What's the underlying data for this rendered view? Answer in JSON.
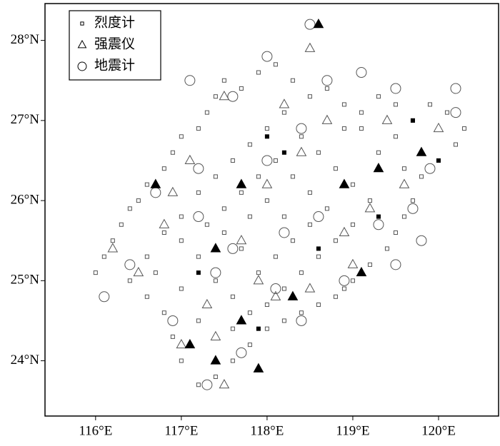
{
  "chart_data": {
    "type": "scatter",
    "xlim": [
      115.41,
      120.7
    ],
    "ylim": [
      23.31,
      28.46
    ],
    "xticks": [
      {
        "value": 116,
        "label": "116°E"
      },
      {
        "value": 117,
        "label": "117°E"
      },
      {
        "value": 118,
        "label": "118°E"
      },
      {
        "value": 119,
        "label": "119°E"
      },
      {
        "value": 120,
        "label": "120°E"
      }
    ],
    "yticks": [
      {
        "value": 24,
        "label": "24°N"
      },
      {
        "value": 25,
        "label": "25°N"
      },
      {
        "value": 26,
        "label": "26°N"
      },
      {
        "value": 27,
        "label": "27°N"
      },
      {
        "value": 28,
        "label": "28°N"
      }
    ],
    "legend": "upper left",
    "series": [
      {
        "name": "烈度计",
        "marker": "square",
        "color": "#555555",
        "fill": "none",
        "x": [
          116.0,
          116.1,
          116.2,
          116.3,
          116.4,
          116.5,
          116.6,
          116.8,
          116.9,
          117.0,
          117.2,
          117.3,
          117.4,
          117.5,
          117.7,
          117.9,
          118.1,
          118.3,
          118.5,
          118.7,
          118.9,
          119.1,
          119.3,
          119.5,
          119.7,
          119.9,
          120.1,
          120.3,
          120.2,
          120.0,
          119.8,
          119.7,
          119.6,
          119.5,
          119.4,
          119.2,
          119.0,
          118.8,
          118.6,
          118.4,
          118.2,
          118.0,
          117.8,
          117.6,
          117.4,
          117.2,
          117.0,
          116.9,
          116.8,
          116.6,
          116.4,
          116.6,
          116.8,
          117.0,
          117.2,
          117.4,
          117.6,
          117.8,
          118.0,
          118.2,
          118.4,
          118.6,
          118.8,
          119.0,
          119.2,
          119.0,
          118.8,
          118.6,
          118.4,
          118.2,
          118.0,
          117.8,
          117.6,
          117.4,
          117.2,
          117.0,
          117.3,
          117.5,
          117.7,
          117.9,
          118.1,
          118.3,
          118.5,
          118.7,
          118.5,
          118.3,
          118.1,
          117.9,
          117.7,
          117.5,
          117.8,
          118.0,
          118.2,
          119.3,
          119.5,
          119.1,
          118.9,
          117.6,
          117.2,
          117.0,
          116.7,
          118.9,
          119.6
        ],
        "y": [
          25.1,
          25.3,
          25.5,
          25.7,
          25.9,
          26.0,
          26.2,
          26.4,
          26.6,
          26.8,
          26.9,
          27.1,
          27.3,
          27.5,
          27.4,
          27.6,
          27.7,
          27.5,
          27.3,
          27.4,
          27.2,
          27.1,
          27.3,
          27.2,
          27.0,
          27.2,
          27.1,
          26.9,
          26.7,
          26.5,
          26.3,
          26.0,
          25.8,
          25.6,
          25.4,
          25.2,
          25.0,
          24.8,
          24.7,
          24.6,
          24.5,
          24.4,
          24.2,
          24.0,
          23.8,
          23.7,
          24.0,
          24.3,
          24.6,
          24.8,
          25.0,
          25.3,
          25.6,
          25.8,
          26.1,
          26.3,
          26.5,
          26.7,
          26.9,
          27.1,
          26.8,
          26.6,
          26.4,
          26.2,
          26.0,
          25.7,
          25.5,
          25.3,
          25.1,
          24.9,
          24.7,
          24.6,
          24.8,
          25.0,
          25.3,
          25.5,
          25.7,
          25.9,
          26.1,
          26.3,
          26.5,
          26.3,
          26.1,
          25.9,
          25.7,
          25.5,
          25.3,
          25.1,
          25.4,
          25.6,
          25.8,
          26.0,
          25.8,
          26.6,
          26.8,
          26.9,
          26.9,
          24.4,
          24.5,
          24.9,
          25.1,
          24.9,
          26.4
        ]
      },
      {
        "name": "强震仪",
        "marker": "triangle",
        "color": "#555555",
        "fill": "none",
        "x": [
          116.2,
          116.5,
          116.9,
          117.1,
          117.5,
          118.2,
          118.4,
          118.0,
          117.7,
          117.3,
          117.0,
          117.5,
          118.1,
          118.5,
          118.9,
          119.2,
          119.6,
          120.0,
          119.4,
          118.7,
          117.9,
          117.4,
          116.8,
          119.0,
          118.5
        ],
        "y": [
          25.4,
          25.1,
          26.1,
          26.5,
          27.3,
          27.2,
          26.6,
          26.2,
          25.5,
          24.7,
          24.2,
          23.7,
          24.8,
          24.9,
          25.6,
          25.9,
          26.2,
          26.9,
          27.0,
          27.0,
          25.0,
          24.3,
          25.7,
          25.2,
          27.9
        ]
      },
      {
        "name": "地震计",
        "marker": "circle",
        "color": "#555555",
        "fill": "none",
        "x": [
          116.1,
          116.7,
          117.2,
          117.1,
          117.6,
          118.0,
          118.7,
          119.1,
          119.5,
          120.2,
          120.2,
          119.9,
          119.7,
          119.8,
          119.5,
          119.3,
          118.9,
          118.4,
          118.1,
          117.7,
          117.3,
          116.9,
          117.4,
          117.6,
          118.2,
          118.6,
          118.0,
          118.4,
          117.2,
          116.4,
          118.5
        ],
        "y": [
          24.8,
          26.1,
          26.4,
          27.5,
          27.3,
          27.8,
          27.5,
          27.6,
          27.4,
          27.4,
          27.1,
          26.4,
          25.9,
          25.5,
          25.2,
          25.7,
          25.0,
          24.5,
          24.9,
          24.1,
          23.7,
          24.5,
          25.1,
          25.4,
          25.6,
          25.8,
          26.5,
          26.9,
          25.8,
          25.2,
          28.2
        ]
      },
      {
        "marker": "triangle",
        "color": "#000000",
        "fill": "#000000",
        "x": [
          116.7,
          117.7,
          118.9,
          119.3,
          119.8,
          117.4,
          119.1,
          117.1,
          117.7,
          118.3,
          117.4,
          117.9,
          118.6
        ],
        "y": [
          26.2,
          26.2,
          26.2,
          26.4,
          26.6,
          25.4,
          25.1,
          24.2,
          24.5,
          24.8,
          24.0,
          23.9,
          28.2
        ]
      },
      {
        "marker": "square",
        "color": "#000000",
        "fill": "#000000",
        "x": [
          118.0,
          118.2,
          119.7,
          119.3,
          118.6,
          117.2,
          117.9,
          120.0
        ],
        "y": [
          26.8,
          26.6,
          27.0,
          25.8,
          25.4,
          25.1,
          24.4,
          26.5
        ]
      }
    ]
  }
}
